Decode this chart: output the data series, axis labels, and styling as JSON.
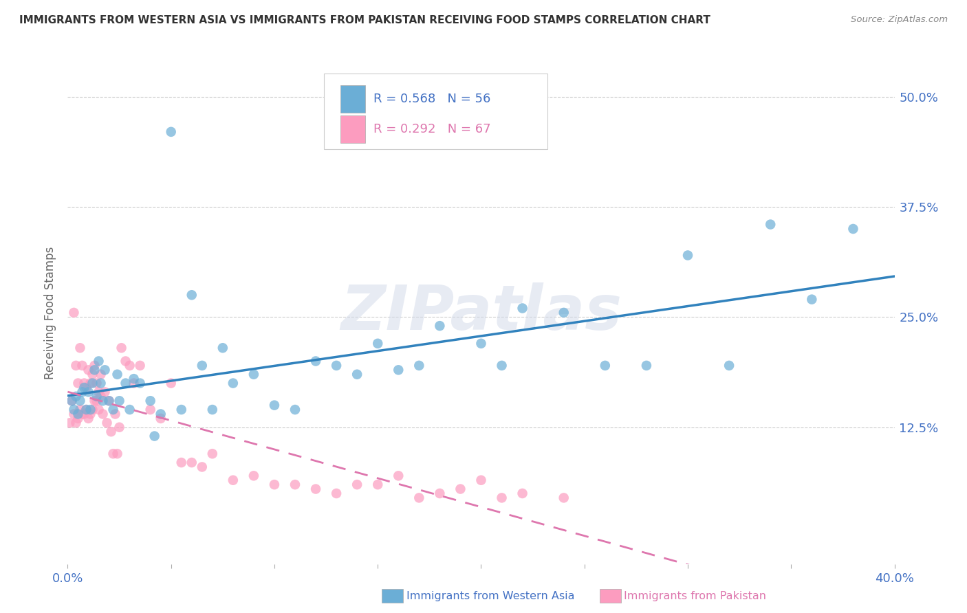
{
  "title": "IMMIGRANTS FROM WESTERN ASIA VS IMMIGRANTS FROM PAKISTAN RECEIVING FOOD STAMPS CORRELATION CHART",
  "source": "Source: ZipAtlas.com",
  "ylabel": "Receiving Food Stamps",
  "legend_labels": [
    "Immigrants from Western Asia",
    "Immigrants from Pakistan"
  ],
  "legend_r_western": "R = 0.568",
  "legend_n_western": "N = 56",
  "legend_r_pakistan": "R = 0.292",
  "legend_n_pakistan": "N = 67",
  "color_western": "#6baed6",
  "color_pakistan": "#fc9cbf",
  "color_trendline_western": "#3182bd",
  "color_trendline_pakistan": "#de77ae",
  "title_color": "#333333",
  "axis_label_color": "#4472c4",
  "watermark": "ZIPatlas",
  "xlim": [
    0.0,
    0.4
  ],
  "ylim": [
    -0.03,
    0.54
  ],
  "yticks": [
    0.125,
    0.25,
    0.375,
    0.5
  ],
  "ytick_labels": [
    "12.5%",
    "25.0%",
    "37.5%",
    "50.0%"
  ],
  "western_asia_x": [
    0.002,
    0.003,
    0.004,
    0.005,
    0.006,
    0.007,
    0.008,
    0.009,
    0.01,
    0.011,
    0.012,
    0.013,
    0.014,
    0.015,
    0.016,
    0.017,
    0.018,
    0.02,
    0.022,
    0.024,
    0.025,
    0.028,
    0.03,
    0.032,
    0.035,
    0.04,
    0.042,
    0.045,
    0.05,
    0.055,
    0.06,
    0.065,
    0.07,
    0.075,
    0.08,
    0.09,
    0.1,
    0.11,
    0.12,
    0.13,
    0.14,
    0.15,
    0.16,
    0.17,
    0.18,
    0.2,
    0.21,
    0.22,
    0.24,
    0.26,
    0.28,
    0.3,
    0.32,
    0.34,
    0.36,
    0.38
  ],
  "western_asia_y": [
    0.155,
    0.145,
    0.16,
    0.14,
    0.155,
    0.165,
    0.17,
    0.145,
    0.165,
    0.145,
    0.175,
    0.19,
    0.16,
    0.2,
    0.175,
    0.155,
    0.19,
    0.155,
    0.145,
    0.185,
    0.155,
    0.175,
    0.145,
    0.18,
    0.175,
    0.155,
    0.115,
    0.14,
    0.46,
    0.145,
    0.275,
    0.195,
    0.145,
    0.215,
    0.175,
    0.185,
    0.15,
    0.145,
    0.2,
    0.195,
    0.185,
    0.22,
    0.19,
    0.195,
    0.24,
    0.22,
    0.195,
    0.26,
    0.255,
    0.195,
    0.195,
    0.32,
    0.195,
    0.355,
    0.27,
    0.35
  ],
  "pakistan_x": [
    0.001,
    0.002,
    0.003,
    0.003,
    0.004,
    0.004,
    0.005,
    0.005,
    0.006,
    0.006,
    0.007,
    0.007,
    0.008,
    0.008,
    0.009,
    0.009,
    0.01,
    0.01,
    0.011,
    0.011,
    0.012,
    0.012,
    0.013,
    0.013,
    0.014,
    0.014,
    0.015,
    0.015,
    0.016,
    0.016,
    0.017,
    0.018,
    0.019,
    0.02,
    0.021,
    0.022,
    0.023,
    0.024,
    0.025,
    0.026,
    0.028,
    0.03,
    0.032,
    0.035,
    0.04,
    0.045,
    0.05,
    0.055,
    0.06,
    0.065,
    0.07,
    0.08,
    0.09,
    0.1,
    0.11,
    0.12,
    0.13,
    0.14,
    0.15,
    0.16,
    0.17,
    0.18,
    0.19,
    0.2,
    0.21,
    0.22,
    0.24
  ],
  "pakistan_y": [
    0.13,
    0.155,
    0.14,
    0.255,
    0.13,
    0.195,
    0.135,
    0.175,
    0.145,
    0.215,
    0.14,
    0.195,
    0.14,
    0.175,
    0.145,
    0.17,
    0.135,
    0.19,
    0.14,
    0.175,
    0.145,
    0.185,
    0.155,
    0.195,
    0.155,
    0.175,
    0.145,
    0.165,
    0.16,
    0.185,
    0.14,
    0.165,
    0.13,
    0.155,
    0.12,
    0.095,
    0.14,
    0.095,
    0.125,
    0.215,
    0.2,
    0.195,
    0.175,
    0.195,
    0.145,
    0.135,
    0.175,
    0.085,
    0.085,
    0.08,
    0.095,
    0.065,
    0.07,
    0.06,
    0.06,
    0.055,
    0.05,
    0.06,
    0.06,
    0.07,
    0.045,
    0.05,
    0.055,
    0.065,
    0.045,
    0.05,
    0.045
  ]
}
